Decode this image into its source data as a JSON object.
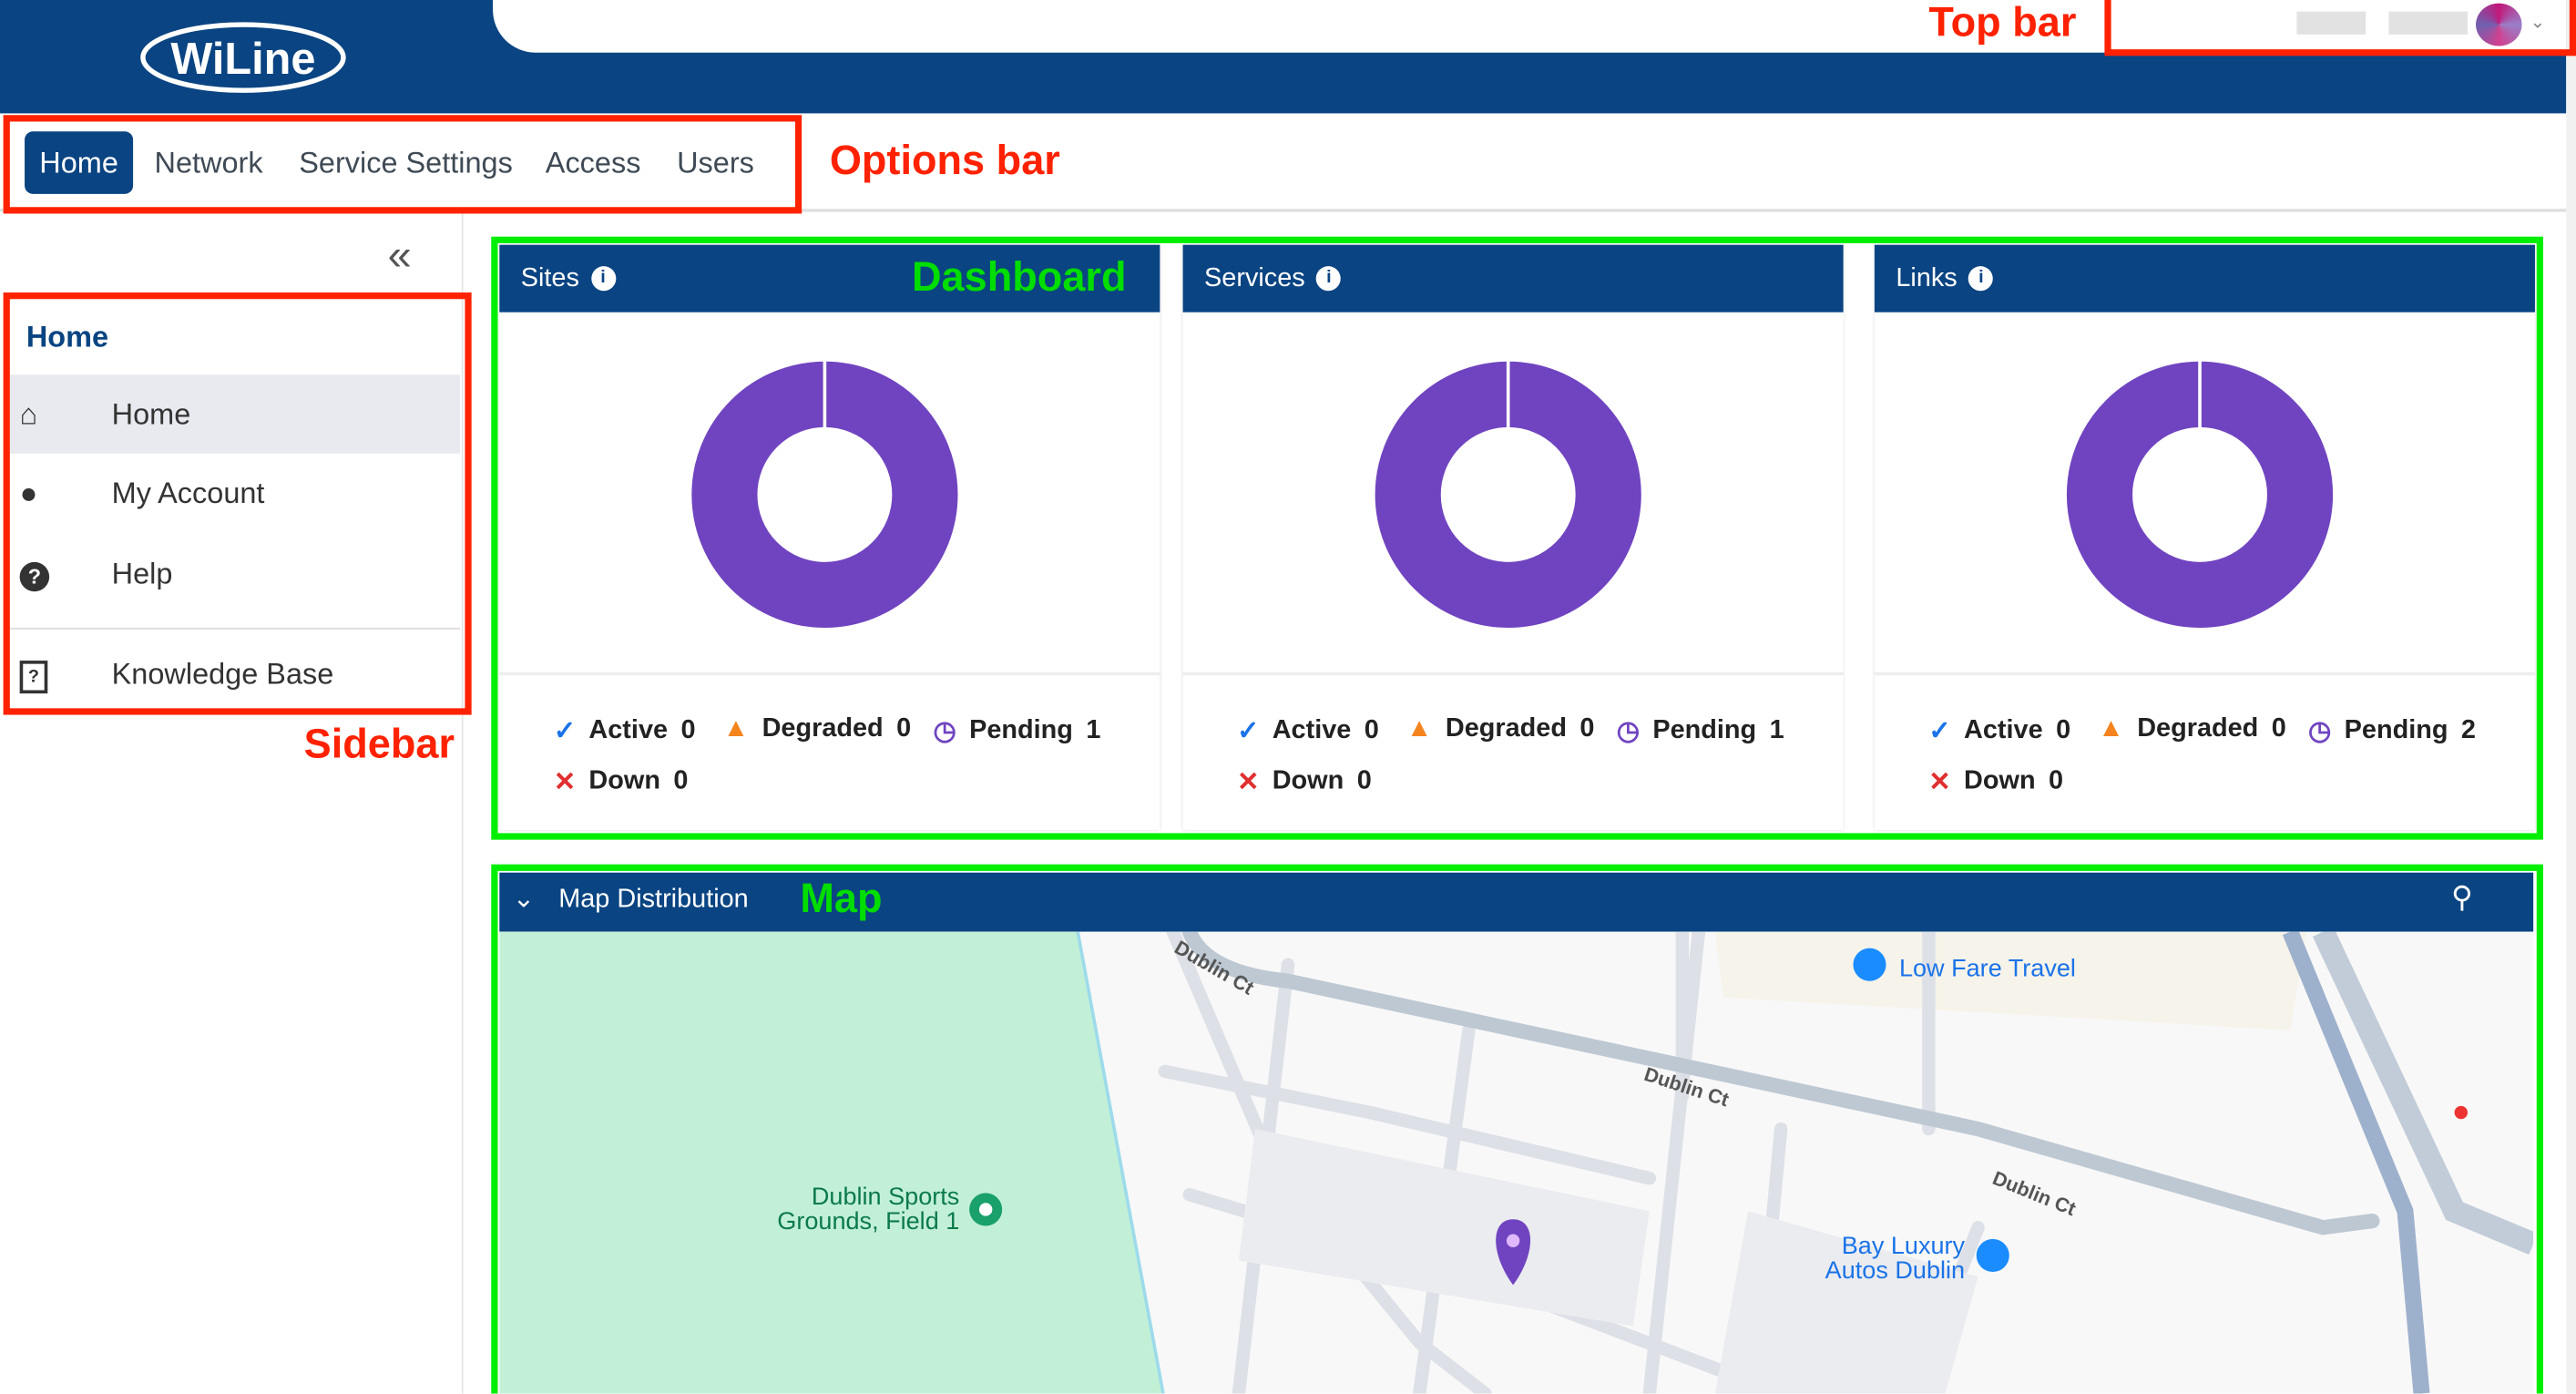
{
  "brand": {
    "logo_text": "WiLine"
  },
  "topbar": {
    "user_menu": "user-avatar-dropdown"
  },
  "options_bar": {
    "tabs": [
      {
        "label": "Home",
        "active": true
      },
      {
        "label": "Network"
      },
      {
        "label": "Service Settings"
      },
      {
        "label": "Access"
      },
      {
        "label": "Users"
      }
    ]
  },
  "sidebar": {
    "title": "Home",
    "items": [
      {
        "label": "Home",
        "icon": "home-icon",
        "active": true
      },
      {
        "label": "My Account",
        "icon": "user-icon"
      },
      {
        "label": "Help",
        "icon": "help-icon"
      },
      {
        "label": "Knowledge Base",
        "icon": "book-icon"
      }
    ]
  },
  "dashboard": {
    "cards": [
      {
        "title": "Sites",
        "active": "Active",
        "active_count": "0",
        "degraded": "Degraded",
        "degraded_count": "0",
        "pending": "Pending",
        "pending_count": "1",
        "down": "Down",
        "down_count": "0"
      },
      {
        "title": "Services",
        "active": "Active",
        "active_count": "0",
        "degraded": "Degraded",
        "degraded_count": "0",
        "pending": "Pending",
        "pending_count": "1",
        "down": "Down",
        "down_count": "0"
      },
      {
        "title": "Links",
        "active": "Active",
        "active_count": "0",
        "degraded": "Degraded",
        "degraded_count": "0",
        "pending": "Pending",
        "pending_count": "2",
        "down": "Down",
        "down_count": "0"
      }
    ],
    "colors": {
      "pending": "#7044c0",
      "active": "#1a73e8",
      "degraded": "#f5841f",
      "down": "#e03030",
      "header": "#0a4482"
    }
  },
  "map": {
    "title": "Map Distribution",
    "streets": [
      "Dublin Ct",
      "Dublin Ct",
      "Dublin Ct"
    ],
    "poi": [
      {
        "label": "Low Fare Travel"
      },
      {
        "label_line1": "Dublin Sports",
        "label_line2": "Grounds, Field 1"
      },
      {
        "label_line1": "Bay Luxury",
        "label_line2": "Autos Dublin"
      }
    ]
  },
  "annotations": {
    "top_bar": "Top bar",
    "options_bar": "Options bar",
    "sidebar": "Sidebar",
    "dashboard": "Dashboard",
    "map": "Map"
  }
}
